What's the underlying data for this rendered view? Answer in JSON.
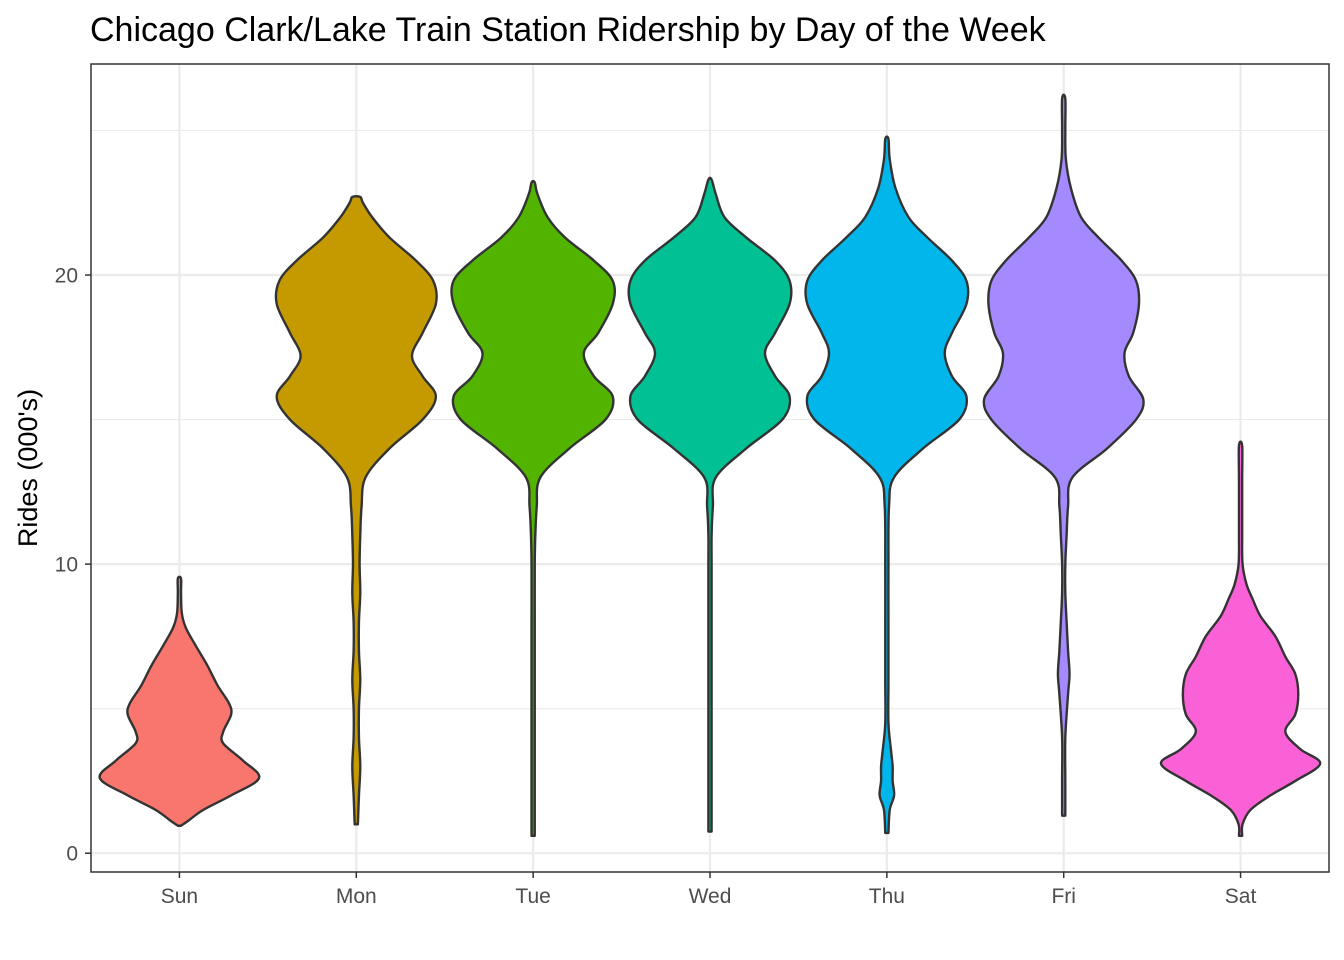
{
  "chart_data": {
    "type": "violin",
    "title": "Chicago Clark/Lake Train Station Ridership by Day of the Week",
    "xlabel": "",
    "ylabel": "Rides (000's)",
    "ylim": [
      -0.65,
      27.3
    ],
    "yticks": [
      0,
      10,
      20
    ],
    "ytick_labels": [
      "0",
      "10",
      "20"
    ],
    "categories": [
      "Sun",
      "Mon",
      "Tue",
      "Wed",
      "Thu",
      "Fri",
      "Sat"
    ],
    "grid": true,
    "legend": "none",
    "series": [
      {
        "category": "Sun",
        "color": "#F8766D",
        "range": [
          0.95,
          9.5
        ],
        "density": [
          [
            0.95,
            0.02
          ],
          [
            1.1,
            0.1
          ],
          [
            1.5,
            0.3
          ],
          [
            2.0,
            0.65
          ],
          [
            2.6,
            1.0
          ],
          [
            3.2,
            0.8
          ],
          [
            3.8,
            0.55
          ],
          [
            4.2,
            0.55
          ],
          [
            4.8,
            0.65
          ],
          [
            5.2,
            0.62
          ],
          [
            5.8,
            0.48
          ],
          [
            6.5,
            0.35
          ],
          [
            7.2,
            0.2
          ],
          [
            7.8,
            0.08
          ],
          [
            8.3,
            0.03
          ],
          [
            9.0,
            0.02
          ],
          [
            9.5,
            0.0
          ]
        ]
      },
      {
        "category": "Mon",
        "color": "#C49A00",
        "range": [
          1.0,
          22.7
        ],
        "density": [
          [
            1.0,
            0.0
          ],
          [
            2.0,
            0.02
          ],
          [
            3.0,
            0.03
          ],
          [
            4.0,
            0.02
          ],
          [
            5.0,
            0.02
          ],
          [
            6.0,
            0.03
          ],
          [
            7.0,
            0.02
          ],
          [
            8.0,
            0.02
          ],
          [
            9.0,
            0.03
          ],
          [
            10.0,
            0.025
          ],
          [
            11.0,
            0.03
          ],
          [
            12.0,
            0.04
          ],
          [
            13.0,
            0.07
          ],
          [
            14.0,
            0.25
          ],
          [
            15.0,
            0.5
          ],
          [
            15.8,
            0.6
          ],
          [
            16.5,
            0.5
          ],
          [
            17.2,
            0.42
          ],
          [
            18.0,
            0.5
          ],
          [
            19.0,
            0.6
          ],
          [
            19.8,
            0.58
          ],
          [
            20.5,
            0.45
          ],
          [
            21.3,
            0.25
          ],
          [
            22.0,
            0.12
          ],
          [
            22.5,
            0.05
          ],
          [
            22.7,
            0.03
          ]
        ]
      },
      {
        "category": "Tue",
        "color": "#53B400",
        "range": [
          0.6,
          23.2
        ],
        "density": [
          [
            0.6,
            0.0
          ],
          [
            2.0,
            0.01
          ],
          [
            4.0,
            0.01
          ],
          [
            6.0,
            0.01
          ],
          [
            8.0,
            0.01
          ],
          [
            10.0,
            0.01
          ],
          [
            11.0,
            0.015
          ],
          [
            12.0,
            0.025
          ],
          [
            13.0,
            0.05
          ],
          [
            14.0,
            0.25
          ],
          [
            15.0,
            0.5
          ],
          [
            15.8,
            0.55
          ],
          [
            16.5,
            0.42
          ],
          [
            17.3,
            0.35
          ],
          [
            18.0,
            0.45
          ],
          [
            19.0,
            0.55
          ],
          [
            19.8,
            0.55
          ],
          [
            20.5,
            0.42
          ],
          [
            21.3,
            0.22
          ],
          [
            22.0,
            0.1
          ],
          [
            22.8,
            0.03
          ],
          [
            23.2,
            0.01
          ]
        ]
      },
      {
        "category": "Wed",
        "color": "#00C094",
        "range": [
          0.75,
          23.3
        ],
        "density": [
          [
            0.75,
            0.0
          ],
          [
            2.0,
            0.01
          ],
          [
            4.0,
            0.01
          ],
          [
            6.0,
            0.01
          ],
          [
            8.0,
            0.01
          ],
          [
            10.0,
            0.01
          ],
          [
            11.0,
            0.01
          ],
          [
            12.0,
            0.02
          ],
          [
            13.0,
            0.04
          ],
          [
            14.0,
            0.25
          ],
          [
            15.0,
            0.5
          ],
          [
            15.8,
            0.55
          ],
          [
            16.5,
            0.45
          ],
          [
            17.3,
            0.38
          ],
          [
            18.0,
            0.45
          ],
          [
            19.0,
            0.55
          ],
          [
            19.8,
            0.55
          ],
          [
            20.5,
            0.45
          ],
          [
            21.3,
            0.25
          ],
          [
            22.0,
            0.1
          ],
          [
            22.8,
            0.04
          ],
          [
            23.3,
            0.01
          ]
        ]
      },
      {
        "category": "Thu",
        "color": "#00B6EB",
        "range": [
          0.7,
          24.7
        ],
        "density": [
          [
            0.7,
            0.0
          ],
          [
            1.5,
            0.02
          ],
          [
            2.0,
            0.05
          ],
          [
            2.5,
            0.04
          ],
          [
            3.0,
            0.04
          ],
          [
            3.5,
            0.03
          ],
          [
            4.5,
            0.01
          ],
          [
            6.0,
            0.01
          ],
          [
            8.0,
            0.01
          ],
          [
            10.0,
            0.01
          ],
          [
            12.0,
            0.015
          ],
          [
            13.0,
            0.05
          ],
          [
            14.0,
            0.25
          ],
          [
            15.0,
            0.5
          ],
          [
            15.8,
            0.55
          ],
          [
            16.5,
            0.45
          ],
          [
            17.3,
            0.4
          ],
          [
            18.0,
            0.45
          ],
          [
            19.0,
            0.55
          ],
          [
            19.8,
            0.55
          ],
          [
            20.5,
            0.45
          ],
          [
            21.3,
            0.28
          ],
          [
            22.0,
            0.15
          ],
          [
            23.0,
            0.06
          ],
          [
            24.0,
            0.02
          ],
          [
            24.7,
            0.005
          ]
        ]
      },
      {
        "category": "Fri",
        "color": "#A58AFF",
        "range": [
          1.3,
          26.1
        ],
        "density": [
          [
            1.3,
            0.0
          ],
          [
            2.5,
            0.01
          ],
          [
            4.0,
            0.01
          ],
          [
            5.5,
            0.03
          ],
          [
            6.2,
            0.04
          ],
          [
            7.0,
            0.03
          ],
          [
            8.0,
            0.02
          ],
          [
            9.0,
            0.01
          ],
          [
            10.0,
            0.01
          ],
          [
            11.0,
            0.02
          ],
          [
            12.0,
            0.03
          ],
          [
            13.0,
            0.06
          ],
          [
            14.0,
            0.3
          ],
          [
            15.0,
            0.5
          ],
          [
            15.7,
            0.55
          ],
          [
            16.5,
            0.45
          ],
          [
            17.3,
            0.42
          ],
          [
            18.0,
            0.48
          ],
          [
            19.0,
            0.52
          ],
          [
            19.8,
            0.5
          ],
          [
            20.5,
            0.4
          ],
          [
            21.3,
            0.24
          ],
          [
            22.0,
            0.12
          ],
          [
            23.0,
            0.05
          ],
          [
            24.0,
            0.015
          ],
          [
            25.0,
            0.005
          ],
          [
            26.1,
            0.0
          ]
        ]
      },
      {
        "category": "Sat",
        "color": "#FB61D7",
        "range": [
          0.6,
          14.1
        ],
        "density": [
          [
            0.6,
            0.0
          ],
          [
            1.0,
            0.02
          ],
          [
            1.5,
            0.1
          ],
          [
            2.0,
            0.3
          ],
          [
            2.5,
            0.55
          ],
          [
            3.1,
            0.8
          ],
          [
            3.6,
            0.6
          ],
          [
            4.2,
            0.45
          ],
          [
            4.8,
            0.55
          ],
          [
            5.5,
            0.58
          ],
          [
            6.2,
            0.55
          ],
          [
            6.8,
            0.45
          ],
          [
            7.5,
            0.35
          ],
          [
            8.2,
            0.2
          ],
          [
            8.8,
            0.12
          ],
          [
            9.3,
            0.06
          ],
          [
            10.0,
            0.02
          ],
          [
            11.0,
            0.01
          ],
          [
            12.0,
            0.01
          ],
          [
            13.0,
            0.005
          ],
          [
            14.1,
            0.0
          ]
        ]
      }
    ]
  }
}
